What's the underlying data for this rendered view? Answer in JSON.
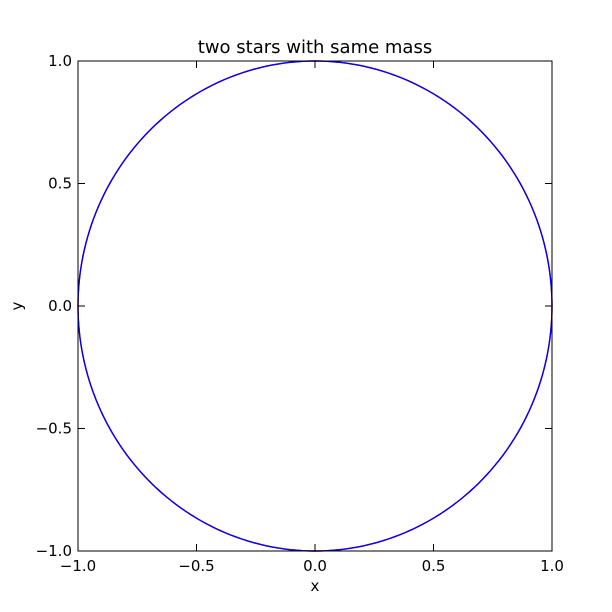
{
  "chart_data": {
    "type": "line",
    "title": "two stars with same mass",
    "xlabel": "x",
    "ylabel": "y",
    "xlim": [
      -1.0,
      1.0
    ],
    "ylim": [
      -1.0,
      1.0
    ],
    "x_ticks": [
      -1.0,
      -0.5,
      0.0,
      0.5,
      1.0
    ],
    "y_ticks": [
      -1.0,
      -0.5,
      0.0,
      0.5,
      1.0
    ],
    "x_tick_labels": [
      "−1.0",
      "−0.5",
      "0.0",
      "0.5",
      "1.0"
    ],
    "y_tick_labels": [
      "−1.0",
      "−0.5",
      "0.0",
      "0.5",
      "1.0"
    ],
    "grid": false,
    "series": [
      {
        "color": "#ff0000",
        "curve": "circle",
        "center": [
          0.0,
          0.0
        ],
        "radius": 1.0
      },
      {
        "color": "#0000ff",
        "curve": "circle",
        "center": [
          0.0,
          0.0
        ],
        "radius": 1.0
      }
    ]
  }
}
